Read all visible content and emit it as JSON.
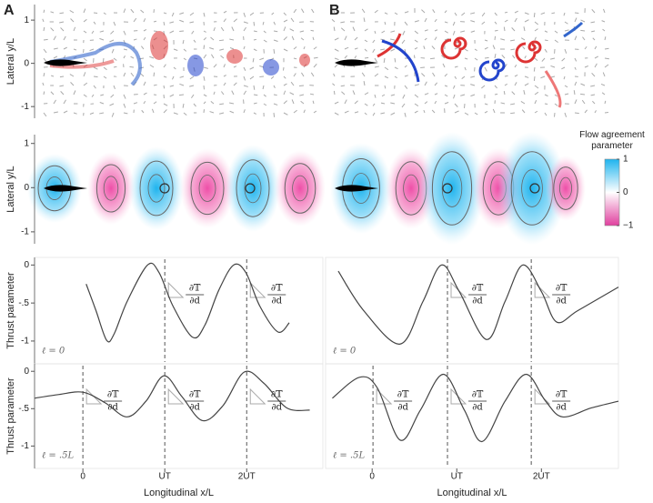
{
  "chart_data": [
    {
      "type": "vector-field",
      "panel": "A",
      "y_label": "Lateral y/L",
      "ylim": [
        -1.27,
        1.36
      ],
      "yticks": [
        -1,
        0,
        1
      ]
    },
    {
      "type": "vector-field",
      "panel": "B"
    },
    {
      "type": "heatmap",
      "y_label": "Lateral y/L",
      "ylim": [
        -1.27,
        1.2
      ],
      "yticks": [
        -1,
        0,
        1
      ]
    },
    {
      "type": "heatmap",
      "colorbar": {
        "title": "Flow agreement parameter",
        "lim": [
          -1,
          1
        ],
        "ticks": [
          {
            "value": -1,
            "label": "−1"
          },
          0,
          1
        ]
      }
    },
    {
      "type": "line",
      "y_label": "Thrust parameter",
      "param_label": "ℓ = 0",
      "xlim": [
        -0.59,
        2.93
      ],
      "ylim": [
        -1.3,
        0.1
      ],
      "yticks": [
        -1,
        {
          "value": -0.5,
          "label": "-.5"
        },
        0
      ],
      "vlines": [
        1,
        2
      ],
      "annotation": {
        "numerator": "∂𝕋",
        "denominator": "∂d"
      },
      "color": "#444",
      "x": [
        0.04,
        0.16,
        0.29,
        0.38,
        0.54,
        0.79,
        0.93,
        1.1,
        1.34,
        1.49,
        1.66,
        1.84,
        1.99,
        2.16,
        2.38,
        2.52
      ],
      "values": [
        -0.25,
        -0.6,
        -0.99,
        -0.91,
        -0.48,
        0,
        -0.1,
        -0.54,
        -0.95,
        -0.79,
        -0.33,
        0,
        -0.1,
        -0.54,
        -0.88,
        -0.76
      ]
    },
    {
      "type": "line",
      "param_label": "ℓ = 0",
      "xlim": [
        -0.55,
        2.91
      ],
      "ylim": [
        -1.3,
        0.1
      ],
      "vlines": [
        0.89,
        1.88
      ],
      "annotation": {
        "numerator": "∂𝕋",
        "denominator": "∂d"
      },
      "color": "#444",
      "x": [
        -0.4,
        -0.1,
        0.33,
        0.6,
        0.82,
        1.03,
        1.35,
        1.57,
        1.78,
        2.0,
        2.18,
        2.43,
        2.91
      ],
      "values": [
        -0.08,
        -0.6,
        -1.04,
        -0.48,
        0,
        -0.35,
        -0.98,
        -0.48,
        0,
        -0.35,
        -0.75,
        -0.6,
        -0.29
      ]
    },
    {
      "type": "line",
      "y_label": "Thrust parameter",
      "param_label": "ℓ = .5L",
      "x_label": "Longitudinal x/L",
      "xlim": [
        -0.59,
        2.93
      ],
      "ylim": [
        -1.3,
        0.1
      ],
      "yticks": [
        -1,
        {
          "value": -0.5,
          "label": "-.5"
        },
        0
      ],
      "xticks": [
        0,
        {
          "value": 1,
          "label": "UT"
        },
        {
          "value": 2,
          "label": "2UT"
        }
      ],
      "vlines": [
        0,
        1,
        2
      ],
      "annotation": {
        "numerator": "∂𝕋",
        "denominator": "∂d"
      },
      "color": "#444",
      "x": [
        -0.59,
        -0.29,
        0,
        0.27,
        0.54,
        0.77,
        0.99,
        1.21,
        1.46,
        1.71,
        1.97,
        2.21,
        2.49,
        2.77
      ],
      "values": [
        -0.36,
        -0.31,
        -0.28,
        -0.42,
        -0.61,
        -0.4,
        -0.06,
        -0.34,
        -0.66,
        -0.46,
        -0.01,
        -0.16,
        -0.49,
        -0.52
      ]
    },
    {
      "type": "line",
      "param_label": "ℓ = .5L",
      "x_label": "Longitudinal x/L",
      "xlim": [
        -0.55,
        2.91
      ],
      "ylim": [
        -1.3,
        0.1
      ],
      "xticks": [
        0,
        {
          "value": 1,
          "label": "UT"
        },
        {
          "value": 2,
          "label": "2UT"
        }
      ],
      "vlines": [
        0.01,
        0.89,
        1.88
      ],
      "annotation": {
        "numerator": "∂𝕋",
        "denominator": "∂d"
      },
      "color": "#444",
      "x": [
        -0.47,
        -0.15,
        0.06,
        0.33,
        0.57,
        0.84,
        1.09,
        1.3,
        1.57,
        1.82,
        2.05,
        2.25,
        2.59,
        2.91
      ],
      "values": [
        -0.36,
        -0.08,
        -0.22,
        -0.92,
        -0.52,
        -0.04,
        -0.52,
        -0.94,
        -0.4,
        -0.04,
        -0.4,
        -0.61,
        -0.49,
        -0.4
      ]
    }
  ]
}
